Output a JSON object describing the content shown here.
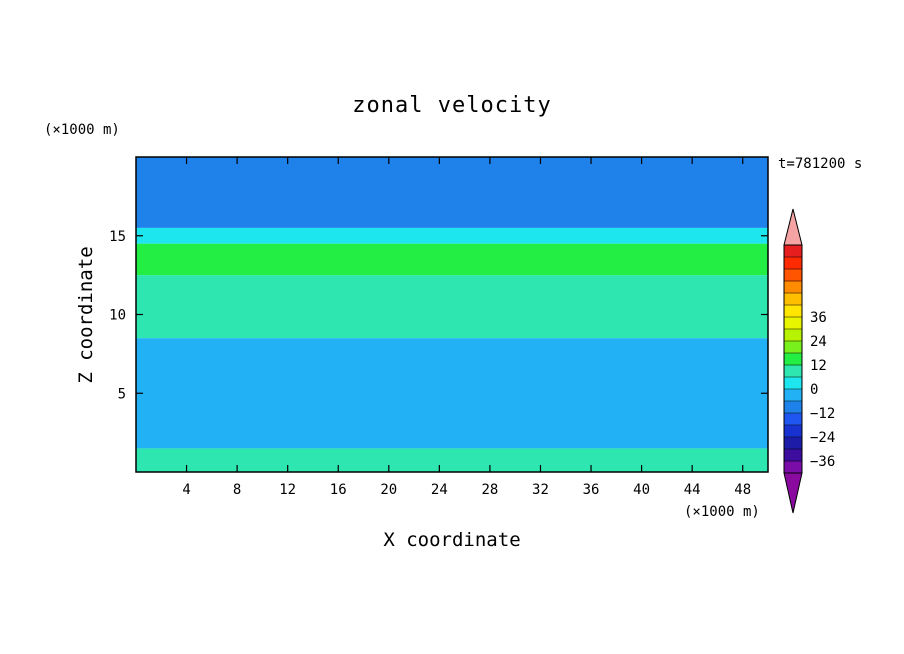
{
  "chart_data": {
    "type": "heatmap",
    "title": "zonal velocity",
    "xlabel": "X coordinate",
    "ylabel": "Z coordinate",
    "x_unit": "(×1000 m)",
    "y_unit": "(×1000 m)",
    "time_label": "t=781200 s",
    "xlim": [
      0,
      50
    ],
    "ylim": [
      0,
      20
    ],
    "x_ticks": [
      4,
      8,
      12,
      16,
      20,
      24,
      28,
      32,
      36,
      40,
      44,
      48
    ],
    "y_ticks": [
      5,
      10,
      15
    ],
    "grid": false,
    "colorbar": {
      "placement": "right",
      "level_min": -42,
      "level_step": 6,
      "tick_labels": [
        "36",
        "24",
        "12",
        "0",
        "−12",
        "−24",
        "−36"
      ],
      "colors": [
        "#7a0ca8",
        "#3c0d9e",
        "#1c1ca8",
        "#1732d0",
        "#1f55f0",
        "#1e82ea",
        "#22b1f5",
        "#1ee6ee",
        "#2ee6b0",
        "#22ee44",
        "#77f01c",
        "#b7f200",
        "#e8f500",
        "#ffe600",
        "#ffbf00",
        "#ff8c00",
        "#ff5400",
        "#ff2a00",
        "#e61e1e"
      ],
      "under_color": "#8a0aa0",
      "over_color": "#f5a3a3"
    },
    "field_bands": [
      {
        "z": [
          0,
          1.5
        ],
        "value": 8
      },
      {
        "z": [
          1.5,
          8.5
        ],
        "value": -6
      },
      {
        "z": [
          8.5,
          12.5
        ],
        "value": 8
      },
      {
        "z": [
          12.5,
          14.5
        ],
        "value": 14
      },
      {
        "z": [
          14.5,
          15.5
        ],
        "value": 0
      },
      {
        "z": [
          15.5,
          20
        ],
        "value": -10
      }
    ]
  }
}
